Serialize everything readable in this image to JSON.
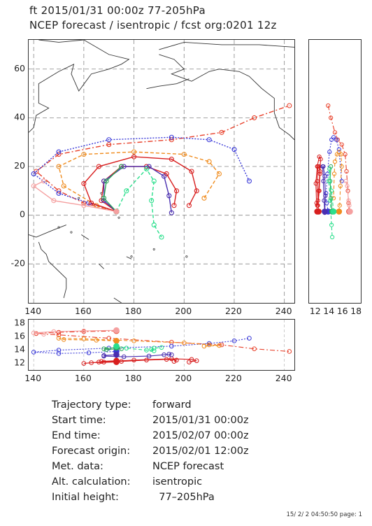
{
  "header": {
    "line1": "ft 2015/01/31 00:00z  77-205hPa",
    "line2": "NCEP forecast / isentropic / fcst org:0201 12z"
  },
  "map": {
    "lon_range": [
      138,
      244
    ],
    "lat_range": [
      -36,
      72
    ],
    "lon_ticks": [
      "140",
      "160",
      "180",
      "200",
      "220",
      "240"
    ],
    "lat_ticks": [
      "60",
      "40",
      "20",
      "0",
      "-20"
    ],
    "grid": "dashed",
    "coastline_icon": "coastline-outline"
  },
  "side_axis": {
    "range": [
      11,
      18.6
    ],
    "ticks": [
      "12",
      "14",
      "16",
      "18"
    ]
  },
  "low_axis": {
    "range": [
      11,
      18.6
    ],
    "ticks": [
      "12",
      "14",
      "16",
      "18"
    ],
    "lon_ticks": [
      "140",
      "160",
      "180",
      "200",
      "220",
      "240"
    ]
  },
  "trajectories": [
    {
      "color": "#e8402a",
      "style": "dashdot",
      "points": [
        [
          173,
          1.5
        ],
        [
          160,
          5
        ],
        [
          150,
          10
        ],
        [
          141,
          18
        ],
        [
          150,
          25
        ],
        [
          170,
          29
        ],
        [
          195,
          31
        ],
        [
          215,
          34
        ],
        [
          228,
          40
        ],
        [
          242,
          45
        ]
      ],
      "heights": [
        16.9,
        16.8,
        16.7,
        16.5,
        16.3,
        15.8,
        15.2,
        14.8,
        14.2,
        13.8
      ]
    },
    {
      "color": "#3a3ad8",
      "style": "dotted",
      "points": [
        [
          173,
          1.5
        ],
        [
          162,
          5
        ],
        [
          150,
          9
        ],
        [
          140,
          17
        ],
        [
          150,
          26
        ],
        [
          170,
          31
        ],
        [
          195,
          32
        ],
        [
          210,
          31
        ],
        [
          220,
          27
        ],
        [
          226,
          14
        ]
      ],
      "heights": [
        13.8,
        13.6,
        13.5,
        13.7,
        14.0,
        14.3,
        14.6,
        15.0,
        15.4,
        15.8
      ]
    },
    {
      "color": "#f08c1e",
      "style": "dashed",
      "points": [
        [
          173,
          1.5
        ],
        [
          165,
          4
        ],
        [
          152,
          12
        ],
        [
          150,
          20
        ],
        [
          160,
          25
        ],
        [
          180,
          26
        ],
        [
          200,
          25
        ],
        [
          210,
          22
        ],
        [
          214,
          17
        ],
        [
          208,
          7
        ]
      ],
      "heights": [
        15.4,
        15.5,
        15.6,
        15.8,
        15.7,
        15.4,
        15.1,
        14.8,
        14.7,
        14.6
      ]
    },
    {
      "color": "#d81e1e",
      "style": "solid",
      "points": [
        [
          173,
          1.5
        ],
        [
          163,
          5
        ],
        [
          160,
          13
        ],
        [
          166,
          20
        ],
        [
          180,
          24
        ],
        [
          195,
          23
        ],
        [
          203,
          18
        ],
        [
          205,
          10
        ],
        [
          202,
          4
        ]
      ],
      "heights": [
        12.2,
        12.1,
        12.0,
        12.2,
        12.5,
        12.7,
        12.6,
        12.4,
        12.2
      ]
    },
    {
      "color": "#d81e1e",
      "style": "solid",
      "points": [
        [
          173,
          1.5
        ],
        [
          167,
          6
        ],
        [
          168,
          14
        ],
        [
          175,
          20
        ],
        [
          185,
          20
        ],
        [
          193,
          17
        ],
        [
          197,
          10
        ],
        [
          196,
          4
        ]
      ],
      "heights": [
        12.4,
        12.3,
        12.2,
        12.3,
        12.5,
        12.6,
        12.5,
        12.3
      ]
    },
    {
      "color": "#4a2fb0",
      "style": "solid",
      "points": [
        [
          173,
          1.5
        ],
        [
          168,
          6
        ],
        [
          168,
          14
        ],
        [
          176,
          20
        ],
        [
          186,
          20
        ],
        [
          192,
          16
        ],
        [
          194,
          8
        ],
        [
          195,
          1
        ]
      ],
      "heights": [
        13.3,
        13.2,
        13.1,
        13.0,
        13.1,
        13.3,
        13.4,
        13.3
      ]
    },
    {
      "color": "#2ea85a",
      "style": "solid",
      "points": [
        [
          173,
          1.5
        ],
        [
          168,
          7
        ],
        [
          169,
          14
        ],
        [
          175,
          20
        ]
      ],
      "heights": [
        14.4,
        14.2,
        14.1,
        14.2
      ]
    },
    {
      "color": "#2adf8c",
      "style": "dashed",
      "points": [
        [
          173,
          1.5
        ],
        [
          177,
          10
        ],
        [
          185,
          19
        ],
        [
          188,
          14
        ],
        [
          187,
          6
        ],
        [
          188,
          -4
        ],
        [
          191,
          -9
        ]
      ],
      "heights": [
        14.6,
        14.3,
        14.0,
        13.9,
        14.1,
        14.3,
        14.4
      ]
    },
    {
      "color": "#f5a0a0",
      "style": "solid",
      "points": [
        [
          173,
          1.5
        ],
        [
          160,
          4
        ],
        [
          148,
          6
        ],
        [
          140,
          12
        ],
        [
          144,
          14
        ]
      ],
      "heights": [
        17.0,
        16.9,
        16.8,
        16.6,
        16.4
      ]
    }
  ],
  "info": [
    {
      "label": "Trajectory type:",
      "value": "forward"
    },
    {
      "label": "Start time:",
      "value": "2015/01/31 00:00z"
    },
    {
      "label": "End time:",
      "value": "2015/02/07 00:00z"
    },
    {
      "label": "Forecast origin:",
      "value": "2015/02/01 12:00z"
    },
    {
      "label": "Met. data:",
      "value": "NCEP forecast"
    },
    {
      "label": "Alt. calculation:",
      "value": "isentropic"
    },
    {
      "label": "Initial height:",
      "value": "  77–205hPa"
    }
  ],
  "footer": "15/ 2/ 2 04:50:50 page: 1"
}
